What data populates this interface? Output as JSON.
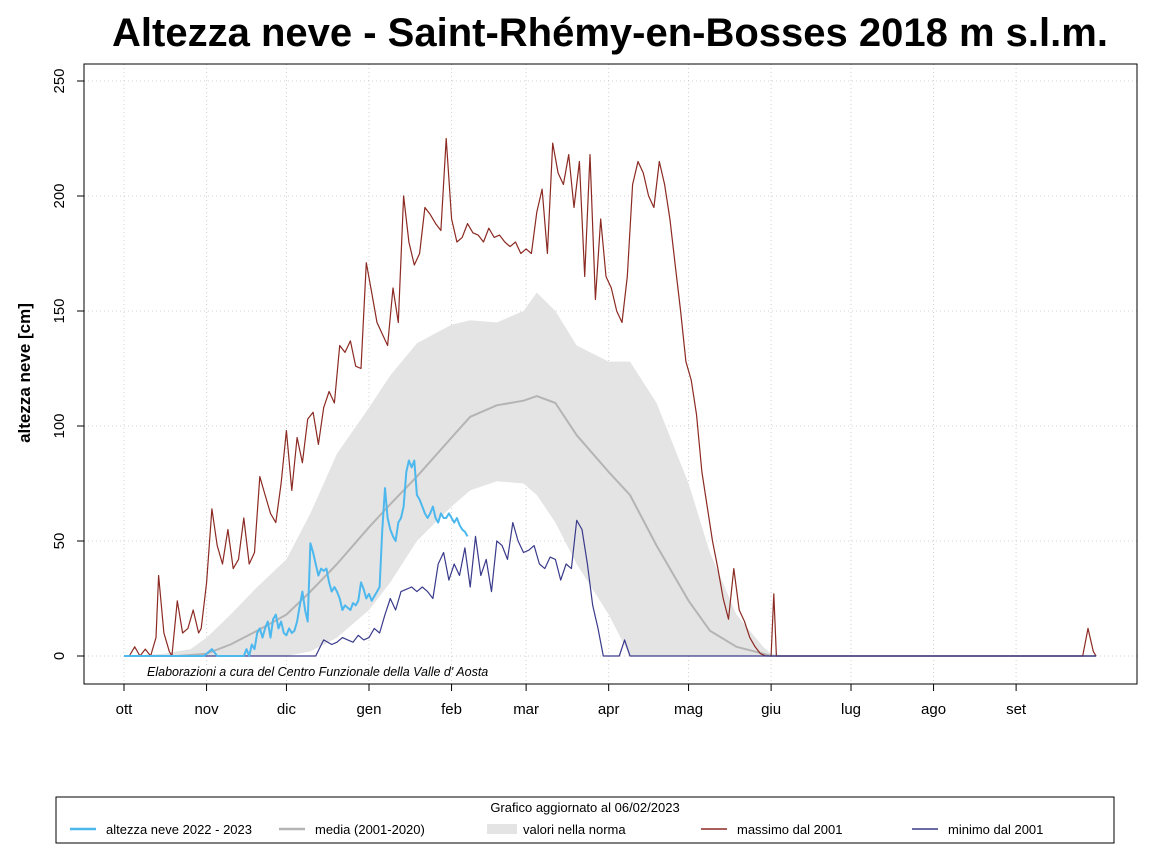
{
  "chart_data": {
    "type": "line",
    "title": "Altezza neve - Saint-Rhémy-en-Bosses 2018 m s.l.m.",
    "xlabel": "",
    "ylabel": "altezza neve [cm]",
    "ylim": [
      0,
      250
    ],
    "yticks": [
      0,
      50,
      100,
      150,
      200,
      250
    ],
    "xlim": [
      0,
      365
    ],
    "months": [
      {
        "label": "ott",
        "day": 0
      },
      {
        "label": "nov",
        "day": 31
      },
      {
        "label": "dic",
        "day": 61
      },
      {
        "label": "gen",
        "day": 92
      },
      {
        "label": "feb",
        "day": 123
      },
      {
        "label": "mar",
        "day": 151
      },
      {
        "label": "apr",
        "day": 182
      },
      {
        "label": "mag",
        "day": 212
      },
      {
        "label": "giu",
        "day": 243
      },
      {
        "label": "lug",
        "day": 273
      },
      {
        "label": "ago",
        "day": 304
      },
      {
        "label": "set",
        "day": 335
      }
    ],
    "grid": true,
    "credit": "Elaborazioni a cura del Centro Funzionale della Valle d' Aosta",
    "legend": {
      "placement": "bottom",
      "heading": "Grafico aggiornato al 06/02/2023",
      "items": [
        {
          "label": "altezza neve  2022 - 2023",
          "color": "#4db8ee",
          "kind": "line"
        },
        {
          "label": "media (2001-2020)",
          "color": "#b4b4b4",
          "kind": "line"
        },
        {
          "label": "valori nella norma",
          "color": "#e4e4e4",
          "kind": "band"
        },
        {
          "label": "massimo dal 2001",
          "color": "#8b2a22",
          "kind": "line"
        },
        {
          "label": "minimo dal 2001",
          "color": "#3a3a8c",
          "kind": "line"
        }
      ]
    },
    "series": [
      {
        "name": "valori nella norma",
        "kind": "band",
        "color": "#e4e4e4",
        "x": [
          0,
          15,
          25,
          31,
          40,
          50,
          61,
          70,
          80,
          92,
          100,
          110,
          123,
          130,
          140,
          150,
          155,
          162,
          170,
          182,
          190,
          200,
          212,
          220,
          230,
          240,
          243,
          250,
          365
        ],
        "upper": [
          0,
          1,
          3,
          8,
          18,
          30,
          42,
          62,
          88,
          108,
          122,
          136,
          144,
          146,
          145,
          150,
          158,
          150,
          135,
          128,
          128,
          110,
          75,
          45,
          18,
          4,
          1,
          0,
          0
        ],
        "lower": [
          0,
          0,
          0,
          0,
          0,
          0,
          0,
          2,
          8,
          20,
          32,
          50,
          65,
          72,
          76,
          75,
          70,
          58,
          40,
          18,
          0,
          0,
          0,
          0,
          0,
          0,
          0,
          0,
          0
        ]
      },
      {
        "name": "media (2001-2020)",
        "kind": "line",
        "color": "#b4b4b4",
        "x": [
          0,
          10,
          20,
          31,
          40,
          50,
          61,
          70,
          80,
          92,
          100,
          110,
          123,
          130,
          140,
          150,
          155,
          162,
          170,
          182,
          190,
          200,
          212,
          220,
          230,
          240,
          243,
          250,
          365
        ],
        "values": [
          0,
          0,
          0,
          1,
          5,
          11,
          18,
          28,
          40,
          56,
          66,
          78,
          95,
          104,
          109,
          111,
          113,
          110,
          96,
          80,
          70,
          48,
          24,
          11,
          4,
          1,
          0,
          0,
          0
        ]
      },
      {
        "name": "massimo dal 2001",
        "kind": "line",
        "color": "#8b2a22",
        "x": [
          0,
          2,
          4,
          6,
          8,
          10,
          12,
          13,
          15,
          17,
          18,
          20,
          22,
          24,
          26,
          28,
          29,
          31,
          33,
          35,
          37,
          39,
          41,
          43,
          45,
          47,
          49,
          51,
          53,
          55,
          57,
          59,
          61,
          63,
          65,
          67,
          69,
          71,
          73,
          75,
          77,
          79,
          81,
          83,
          85,
          87,
          89,
          91,
          93,
          95,
          97,
          99,
          101,
          103,
          105,
          107,
          109,
          111,
          113,
          115,
          117,
          119,
          121,
          123,
          125,
          127,
          129,
          131,
          133,
          135,
          137,
          139,
          141,
          143,
          145,
          147,
          149,
          151,
          153,
          155,
          157,
          159,
          161,
          163,
          165,
          167,
          169,
          171,
          173,
          175,
          177,
          179,
          181,
          183,
          185,
          187,
          189,
          191,
          193,
          195,
          197,
          199,
          201,
          203,
          205,
          207,
          209,
          211,
          213,
          215,
          217,
          219,
          221,
          223,
          225,
          227,
          229,
          231,
          233,
          235,
          237,
          239,
          241,
          243,
          244,
          245,
          250,
          300,
          340,
          350,
          360,
          362,
          364,
          365
        ],
        "values": [
          0,
          0,
          4,
          0,
          3,
          0,
          8,
          35,
          10,
          2,
          0,
          24,
          10,
          12,
          20,
          10,
          12,
          32,
          64,
          48,
          40,
          55,
          38,
          42,
          60,
          40,
          45,
          78,
          70,
          62,
          58,
          75,
          98,
          72,
          95,
          84,
          103,
          106,
          92,
          108,
          115,
          110,
          135,
          132,
          137,
          126,
          125,
          171,
          158,
          145,
          140,
          135,
          160,
          145,
          200,
          180,
          170,
          175,
          195,
          192,
          188,
          185,
          225,
          190,
          180,
          182,
          188,
          184,
          183,
          180,
          186,
          182,
          183,
          180,
          178,
          180,
          175,
          177,
          175,
          193,
          203,
          175,
          223,
          210,
          205,
          218,
          195,
          215,
          165,
          218,
          155,
          190,
          165,
          160,
          150,
          145,
          165,
          205,
          215,
          210,
          200,
          195,
          215,
          205,
          190,
          170,
          150,
          128,
          120,
          105,
          80,
          65,
          50,
          38,
          25,
          16,
          38,
          20,
          15,
          8,
          4,
          1,
          0,
          0,
          27,
          0,
          0,
          0,
          0,
          0,
          0,
          12,
          2,
          0
        ]
      },
      {
        "name": "minimo dal 2001",
        "kind": "line",
        "color": "#3a3a8c",
        "x": [
          0,
          30,
          60,
          72,
          75,
          78,
          80,
          82,
          84,
          86,
          88,
          90,
          92,
          94,
          96,
          98,
          100,
          102,
          104,
          106,
          108,
          110,
          112,
          114,
          116,
          118,
          120,
          122,
          124,
          126,
          128,
          130,
          132,
          134,
          136,
          138,
          140,
          142,
          144,
          146,
          148,
          150,
          152,
          154,
          156,
          158,
          160,
          162,
          164,
          166,
          168,
          170,
          172,
          174,
          176,
          178,
          180,
          182,
          184,
          186,
          188,
          190,
          192,
          365
        ],
        "values": [
          0,
          0,
          0,
          0,
          7,
          5,
          6,
          8,
          7,
          6,
          9,
          7,
          8,
          12,
          10,
          18,
          25,
          20,
          28,
          29,
          30,
          28,
          30,
          28,
          25,
          40,
          45,
          33,
          40,
          35,
          47,
          30,
          52,
          35,
          42,
          28,
          50,
          48,
          42,
          58,
          50,
          45,
          46,
          48,
          40,
          38,
          43,
          42,
          33,
          40,
          38,
          59,
          55,
          40,
          22,
          12,
          0,
          0,
          0,
          0,
          7,
          0,
          0,
          0
        ]
      },
      {
        "name": "altezza neve  2022 - 2023",
        "kind": "line",
        "color": "#4db8ee",
        "x": [
          0,
          30,
          33,
          35,
          38,
          41,
          43,
          45,
          46,
          47,
          48,
          49,
          50,
          51,
          52,
          53,
          54,
          55,
          56,
          57,
          58,
          59,
          60,
          61,
          62,
          63,
          64,
          65,
          66,
          67,
          68,
          69,
          70,
          71,
          72,
          73,
          74,
          75,
          76,
          77,
          78,
          79,
          80,
          81,
          82,
          83,
          84,
          85,
          86,
          87,
          88,
          89,
          90,
          91,
          92,
          93,
          94,
          95,
          96,
          97,
          98,
          99,
          100,
          101,
          102,
          103,
          104,
          105,
          106,
          107,
          108,
          109,
          110,
          111,
          112,
          113,
          114,
          115,
          116,
          117,
          118,
          119,
          120,
          121,
          122,
          123,
          124,
          125,
          126,
          127,
          128,
          129
        ],
        "values": [
          0,
          0,
          3,
          0,
          0,
          0,
          0,
          0,
          3,
          0,
          5,
          3,
          10,
          12,
          8,
          12,
          15,
          8,
          16,
          18,
          12,
          15,
          10,
          9,
          12,
          10,
          11,
          15,
          22,
          28,
          20,
          15,
          49,
          45,
          40,
          35,
          38,
          37,
          38,
          32,
          28,
          30,
          28,
          25,
          20,
          22,
          21,
          20,
          23,
          22,
          24,
          32,
          29,
          25,
          27,
          24,
          26,
          28,
          30,
          55,
          73,
          60,
          55,
          52,
          50,
          58,
          60,
          65,
          80,
          85,
          82,
          85,
          70,
          68,
          65,
          62,
          60,
          62,
          65,
          60,
          58,
          62,
          60,
          60,
          62,
          60,
          58,
          60,
          57,
          55,
          54,
          52
        ]
      }
    ]
  }
}
